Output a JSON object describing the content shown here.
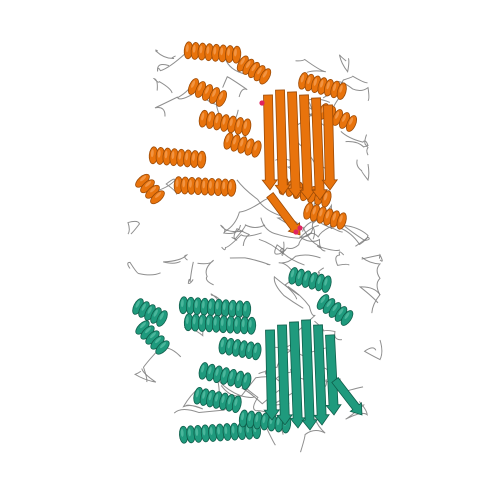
{
  "scene": {
    "background": "#ffffff",
    "chains": [
      {
        "id": "A",
        "color": "#e8730c",
        "dark": "#9c4a06",
        "light": "#f7a35a"
      },
      {
        "id": "B",
        "color": "#1f9a7d",
        "dark": "#0f5e4b",
        "light": "#5cc2a8"
      }
    ],
    "ligand_color": "#e0245e",
    "coil_color": "#7a7a7a"
  }
}
